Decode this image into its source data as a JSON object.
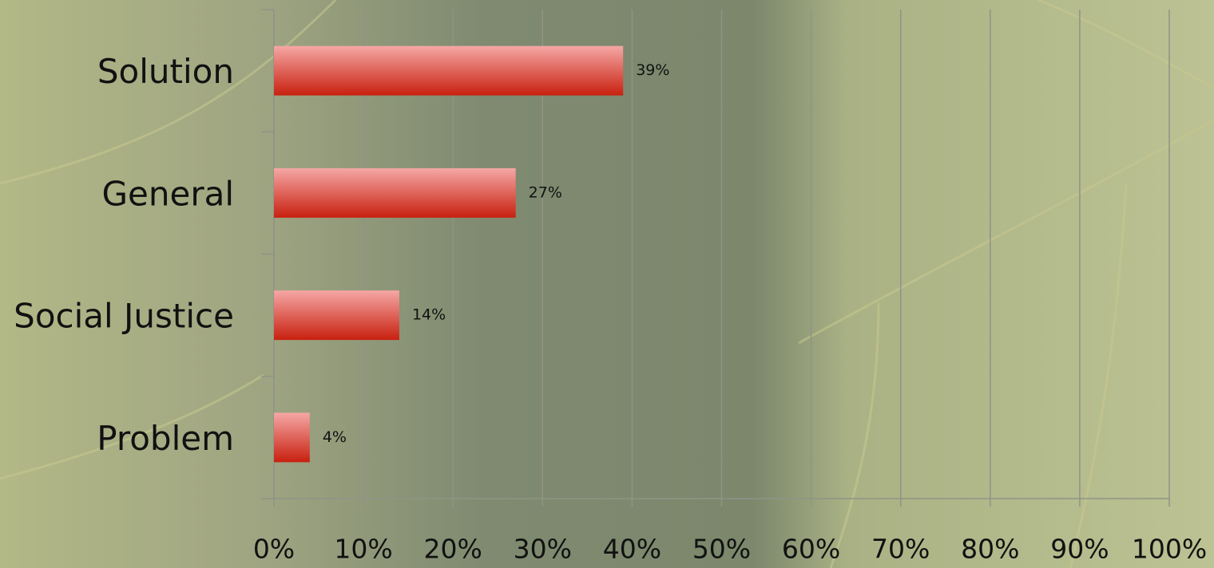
{
  "chart_data": {
    "type": "bar",
    "orientation": "horizontal",
    "categories": [
      "Solution",
      "General",
      "Social Justice",
      "Problem"
    ],
    "values": [
      39,
      27,
      14,
      4
    ],
    "value_labels": [
      "39%",
      "27%",
      "14%",
      "4%"
    ],
    "color": "#c8200f",
    "xlim": [
      0,
      100
    ],
    "xticks": [
      {
        "value": 0,
        "label": "0%"
      },
      {
        "value": 10,
        "label": "10%"
      },
      {
        "value": 20,
        "label": "20%"
      },
      {
        "value": 30,
        "label": "30%"
      },
      {
        "value": 40,
        "label": "40%"
      },
      {
        "value": 50,
        "label": "50%"
      },
      {
        "value": 60,
        "label": "60%"
      },
      {
        "value": 70,
        "label": "70%"
      },
      {
        "value": 80,
        "label": "80%"
      },
      {
        "value": 90,
        "label": "90%"
      },
      {
        "value": 100,
        "label": "100%"
      }
    ],
    "grid": true
  }
}
